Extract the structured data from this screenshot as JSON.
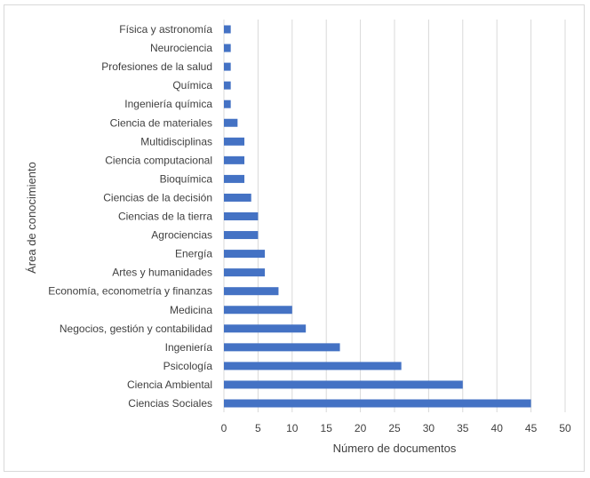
{
  "chart_data": {
    "type": "bar",
    "orientation": "horizontal",
    "xlabel": "Número de documentos",
    "ylabel": "Área de conocimiento",
    "xlim": [
      0,
      50
    ],
    "xticks": [
      0,
      5,
      10,
      15,
      20,
      25,
      30,
      35,
      40,
      45,
      50
    ],
    "grid": "vertical",
    "legend": "none",
    "bar_color": "#4472C4",
    "categories": [
      "Física y astronomía",
      "Neurociencia",
      "Profesiones de la salud",
      "Química",
      "Ingeniería química",
      "Ciencia de materiales",
      "Multidisciplinas",
      "Ciencia computacional",
      "Bioquímica",
      "Ciencias de la decisión",
      "Ciencias de la tierra",
      "Agrociencias",
      "Energía",
      "Artes y humanidades",
      "Economía, econometría y finanzas",
      "Medicina",
      "Negocios, gestión y contabilidad",
      "Ingeniería",
      "Psicología",
      "Ciencia Ambiental",
      "Ciencias Sociales"
    ],
    "values": [
      1,
      1,
      1,
      1,
      1,
      2,
      3,
      3,
      3,
      4,
      5,
      5,
      6,
      6,
      8,
      10,
      12,
      17,
      26,
      35,
      45
    ]
  }
}
